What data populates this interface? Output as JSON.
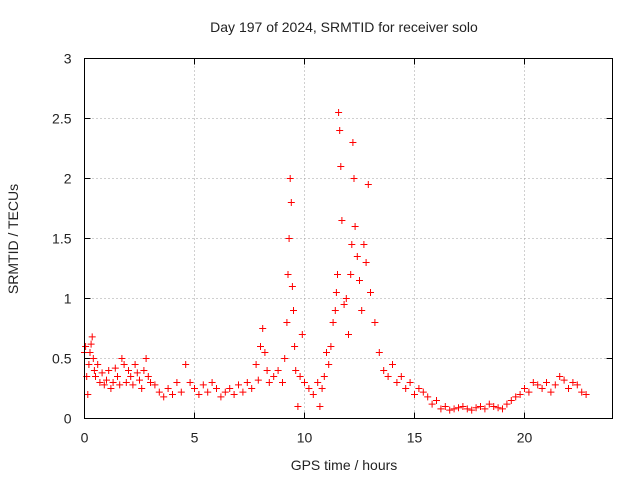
{
  "chart_data": {
    "type": "scatter",
    "title": "Day 197 of 2024, SRMTID for receiver solo",
    "xlabel": "GPS time / hours",
    "ylabel": "SRMTID / TECUs",
    "xlim": [
      0,
      24
    ],
    "ylim": [
      0,
      3
    ],
    "xticks": [
      0,
      5,
      10,
      15,
      20
    ],
    "yticks": [
      0,
      0.5,
      1,
      1.5,
      2,
      2.5,
      3
    ],
    "xtick_labels": [
      "0",
      "5",
      "10",
      "15",
      "20"
    ],
    "ytick_labels": [
      "0",
      "0.5",
      "1",
      "1.5",
      "2",
      "2.5",
      "3"
    ],
    "grid": true,
    "marker": "+",
    "series": [
      {
        "name": "SRMTID",
        "color": "#ff0000",
        "x": [
          0.0,
          0.05,
          0.1,
          0.15,
          0.2,
          0.25,
          0.3,
          0.35,
          0.4,
          0.45,
          0.5,
          0.6,
          0.7,
          0.8,
          0.9,
          1.0,
          1.1,
          1.2,
          1.3,
          1.4,
          1.5,
          1.6,
          1.7,
          1.8,
          1.9,
          2.0,
          2.1,
          2.2,
          2.3,
          2.4,
          2.5,
          2.6,
          2.7,
          2.8,
          2.9,
          3.0,
          3.2,
          3.4,
          3.6,
          3.8,
          4.0,
          4.2,
          4.4,
          4.6,
          4.8,
          5.0,
          5.2,
          5.4,
          5.6,
          5.8,
          6.0,
          6.2,
          6.4,
          6.6,
          6.8,
          7.0,
          7.2,
          7.4,
          7.6,
          7.8,
          7.9,
          8.0,
          8.1,
          8.2,
          8.3,
          8.4,
          8.6,
          8.8,
          9.0,
          9.1,
          9.2,
          9.25,
          9.3,
          9.35,
          9.4,
          9.45,
          9.5,
          9.55,
          9.6,
          9.7,
          9.8,
          9.9,
          10.0,
          10.2,
          10.4,
          10.6,
          10.7,
          10.8,
          10.9,
          11.0,
          11.1,
          11.2,
          11.3,
          11.4,
          11.45,
          11.5,
          11.55,
          11.6,
          11.65,
          11.7,
          11.8,
          11.9,
          12.0,
          12.1,
          12.15,
          12.2,
          12.25,
          12.3,
          12.4,
          12.5,
          12.6,
          12.7,
          12.8,
          12.9,
          13.0,
          13.2,
          13.4,
          13.6,
          13.8,
          14.0,
          14.2,
          14.4,
          14.6,
          14.8,
          15.0,
          15.2,
          15.4,
          15.6,
          15.8,
          16.0,
          16.2,
          16.4,
          16.6,
          16.8,
          17.0,
          17.2,
          17.4,
          17.6,
          17.8,
          18.0,
          18.2,
          18.4,
          18.6,
          18.8,
          19.0,
          19.2,
          19.4,
          19.6,
          19.8,
          20.0,
          20.2,
          20.4,
          20.6,
          20.8,
          21.0,
          21.2,
          21.4,
          21.6,
          21.8,
          22.0,
          22.2,
          22.4,
          22.6,
          22.8
        ],
        "y": [
          0.55,
          0.6,
          0.35,
          0.2,
          0.45,
          0.55,
          0.62,
          0.68,
          0.5,
          0.4,
          0.35,
          0.45,
          0.3,
          0.38,
          0.28,
          0.32,
          0.4,
          0.25,
          0.3,
          0.42,
          0.35,
          0.28,
          0.5,
          0.45,
          0.3,
          0.4,
          0.35,
          0.28,
          0.45,
          0.38,
          0.32,
          0.25,
          0.4,
          0.5,
          0.35,
          0.3,
          0.28,
          0.22,
          0.18,
          0.25,
          0.2,
          0.3,
          0.22,
          0.45,
          0.3,
          0.25,
          0.2,
          0.28,
          0.22,
          0.3,
          0.25,
          0.18,
          0.22,
          0.25,
          0.2,
          0.28,
          0.22,
          0.3,
          0.25,
          0.45,
          0.32,
          0.6,
          0.75,
          0.55,
          0.4,
          0.3,
          0.35,
          0.4,
          0.3,
          0.5,
          0.8,
          1.2,
          1.5,
          2.0,
          1.8,
          1.1,
          0.9,
          0.6,
          0.4,
          0.1,
          0.35,
          0.7,
          0.3,
          0.25,
          0.2,
          0.3,
          0.1,
          0.25,
          0.35,
          0.55,
          0.45,
          0.6,
          0.8,
          0.9,
          1.05,
          1.2,
          2.55,
          2.4,
          2.1,
          1.65,
          0.95,
          1.0,
          0.7,
          1.2,
          1.45,
          2.3,
          2.0,
          1.6,
          1.35,
          1.15,
          0.9,
          1.45,
          1.3,
          1.95,
          1.05,
          0.8,
          0.55,
          0.4,
          0.35,
          0.45,
          0.3,
          0.35,
          0.25,
          0.3,
          0.2,
          0.25,
          0.22,
          0.18,
          0.12,
          0.15,
          0.08,
          0.1,
          0.07,
          0.08,
          0.09,
          0.1,
          0.08,
          0.07,
          0.09,
          0.1,
          0.08,
          0.12,
          0.1,
          0.09,
          0.08,
          0.12,
          0.15,
          0.18,
          0.2,
          0.25,
          0.22,
          0.3,
          0.28,
          0.25,
          0.3,
          0.22,
          0.28,
          0.35,
          0.32,
          0.25,
          0.3,
          0.28,
          0.22,
          0.2
        ]
      }
    ]
  }
}
